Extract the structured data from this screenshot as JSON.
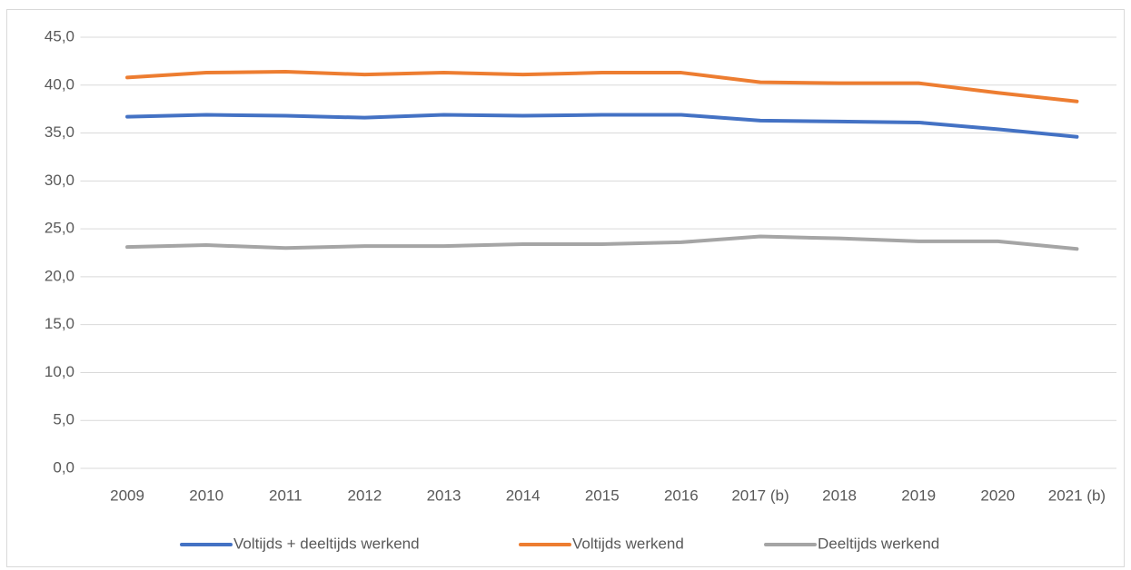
{
  "chart_data": {
    "type": "line",
    "categories": [
      "2009",
      "2010",
      "2011",
      "2012",
      "2013",
      "2014",
      "2015",
      "2016",
      "2017 (b)",
      "2018",
      "2019",
      "2020",
      "2021 (b)"
    ],
    "series": [
      {
        "name": "Voltijds + deeltijds werkend",
        "color": "#4472c4",
        "values": [
          36.7,
          36.9,
          36.8,
          36.6,
          36.9,
          36.8,
          36.9,
          36.9,
          36.3,
          36.2,
          36.1,
          35.4,
          34.6
        ]
      },
      {
        "name": "Voltijds werkend",
        "color": "#ed7d31",
        "values": [
          40.8,
          41.3,
          41.4,
          41.1,
          41.3,
          41.1,
          41.3,
          41.3,
          40.3,
          40.2,
          40.2,
          39.2,
          38.3
        ]
      },
      {
        "name": "Deeltijds werkend",
        "color": "#a5a5a5",
        "values": [
          23.1,
          23.3,
          23.0,
          23.2,
          23.2,
          23.4,
          23.4,
          23.6,
          24.2,
          24.0,
          23.7,
          23.7,
          22.9
        ]
      }
    ],
    "ylim": [
      0,
      45
    ],
    "yticks": [
      {
        "value": 0,
        "label": "0,0"
      },
      {
        "value": 5,
        "label": "5,0"
      },
      {
        "value": 10,
        "label": "10,0"
      },
      {
        "value": 15,
        "label": "15,0"
      },
      {
        "value": 20,
        "label": "20,0"
      },
      {
        "value": 25,
        "label": "25,0"
      },
      {
        "value": 30,
        "label": "30,0"
      },
      {
        "value": 35,
        "label": "35,0"
      },
      {
        "value": 40,
        "label": "40,0"
      },
      {
        "value": 45,
        "label": "45,0"
      }
    ],
    "grid": true,
    "legend": "bottom"
  }
}
